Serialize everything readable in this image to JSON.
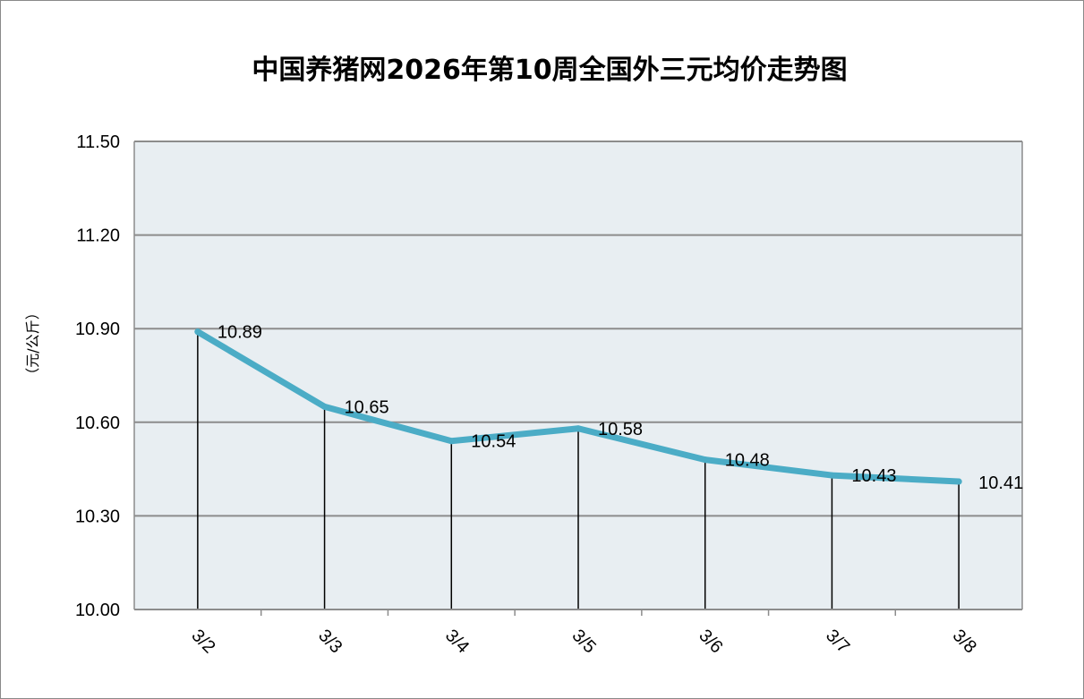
{
  "chart_data": {
    "type": "line",
    "title": "中国养猪网2026年第10周全国外三元均价走势图",
    "ylabel": "（元/公斤）",
    "xlabel": "",
    "categories": [
      "3/2",
      "3/3",
      "3/4",
      "3/5",
      "3/6",
      "3/7",
      "3/8"
    ],
    "series": [
      {
        "values": [
          10.89,
          10.65,
          10.54,
          10.58,
          10.48,
          10.43,
          10.41
        ]
      }
    ],
    "data_labels": [
      "10.89",
      "10.65",
      "10.54",
      "10.58",
      "10.48",
      "10.43",
      "10.41"
    ],
    "ylim": [
      10.0,
      11.5
    ],
    "yticks": [
      "10.00",
      "10.30",
      "10.60",
      "10.90",
      "11.20",
      "11.50"
    ],
    "ytick_values": [
      10.0,
      10.3,
      10.6,
      10.9,
      11.2,
      11.5
    ],
    "grid": true,
    "drop_lines": true,
    "colors": {
      "line": "#4bacc6",
      "plot_background": "#e8eef2",
      "grid": "#8c8c8c",
      "drop_line": "#000000"
    }
  }
}
